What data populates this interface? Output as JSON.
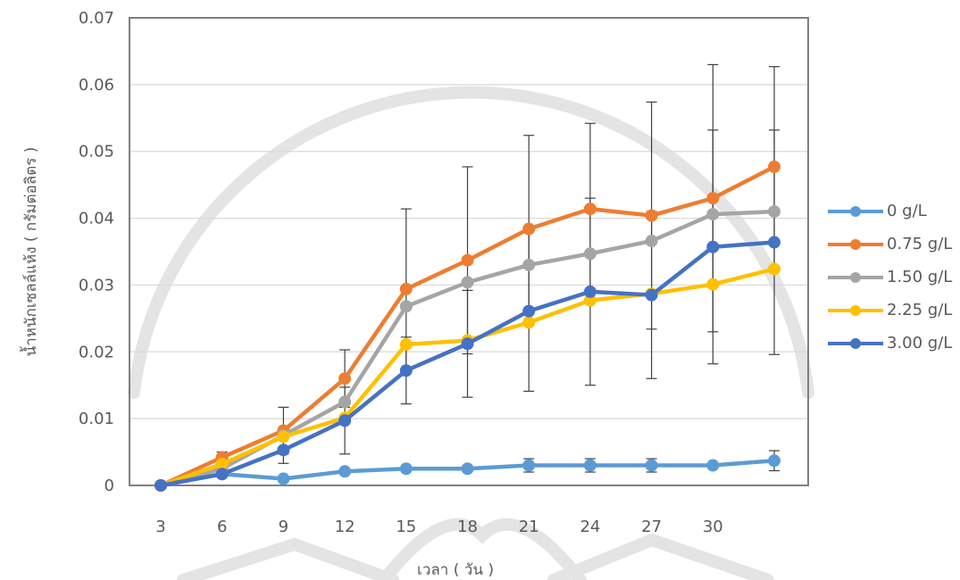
{
  "chart_data": {
    "type": "line",
    "title": "",
    "xlabel": "เวลา ( วัน )",
    "ylabel": "น้ำหนักเซลล์แห้ง ( กรัมต่อลิตร )",
    "categories": [
      "3",
      "6",
      "9",
      "12",
      "15",
      "18",
      "21",
      "24",
      "27",
      "30",
      ""
    ],
    "ylim": [
      0,
      0.07
    ],
    "yticks": [
      "0",
      "0.01",
      "0.02",
      "0.03",
      "0.04",
      "0.05",
      "0.06",
      "0.07"
    ],
    "grid": true,
    "legend_position": "right",
    "series": [
      {
        "name": "0 g/L",
        "color": "#5B9BD5",
        "values": [
          0.0,
          0.0017,
          0.001,
          0.0021,
          0.0025,
          0.0025,
          0.003,
          0.003,
          0.003,
          0.003,
          0.0037
        ],
        "errors": [
          0,
          0,
          0,
          0,
          0,
          0,
          0.001,
          0.001,
          0.001,
          0,
          0.0015
        ]
      },
      {
        "name": "0.75 g/L",
        "color": "#ED7D31",
        "values": [
          0.0,
          0.0042,
          0.0082,
          0.016,
          0.0294,
          0.0337,
          0.0384,
          0.0414,
          0.0404,
          0.043,
          0.0477
        ],
        "errors": [
          0,
          0.0008,
          0.0035,
          0.0043,
          0.012,
          0.014,
          0.014,
          0.0128,
          0.017,
          0.02,
          0.015
        ]
      },
      {
        "name": "1.50 g/L",
        "color": "#A5A5A5",
        "values": [
          0.0,
          0.0025,
          0.0075,
          0.0125,
          0.0268,
          0.0304,
          0.033,
          0.0347,
          0.0366,
          0.0406,
          0.041
        ]
      },
      {
        "name": "2.25 g/L",
        "color": "#FFC000",
        "values": [
          0.0,
          0.0032,
          0.0073,
          0.0101,
          0.0211,
          0.0217,
          0.0244,
          0.0277,
          0.0287,
          0.0301,
          0.0324
        ]
      },
      {
        "name": "3.00 g/L",
        "color": "#4472C4",
        "values": [
          0.0,
          0.0017,
          0.0053,
          0.0097,
          0.0172,
          0.0212,
          0.0261,
          0.029,
          0.0285,
          0.0357,
          0.0364
        ],
        "errors": [
          0,
          0,
          0.002,
          0.005,
          0.005,
          0.008,
          0.012,
          0.014,
          0.0125,
          0.0175,
          0.0168
        ]
      }
    ]
  }
}
